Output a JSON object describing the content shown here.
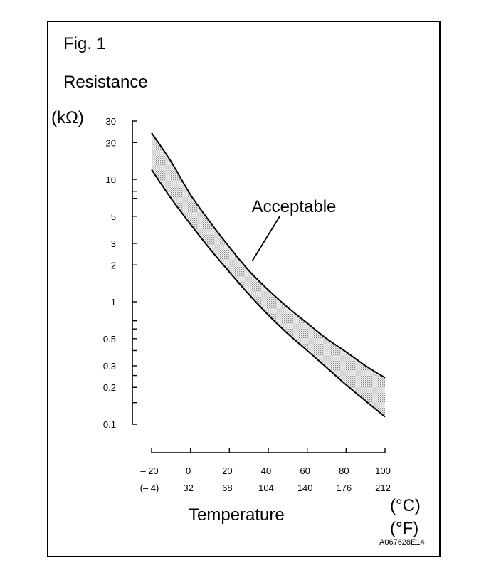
{
  "figure": {
    "label": "Fig. 1",
    "code": "A067628E14"
  },
  "colors": {
    "ink": "#000000",
    "band": "#c9c9c9"
  },
  "chart_data": {
    "type": "area",
    "title": "",
    "ylabel": "Resistance",
    "ylabel_unit": "(kΩ)",
    "xlabel": "Temperature",
    "xlabel_unit_primary": "(°C)",
    "xlabel_unit_secondary": "(°F)",
    "y_scale": "log",
    "ylim": [
      0.1,
      30
    ],
    "xlim": [
      -20,
      100
    ],
    "y_ticks": [
      {
        "value": 0.1,
        "label": "0.1"
      },
      {
        "value": 0.15,
        "label": ""
      },
      {
        "value": 0.2,
        "label": "0.2"
      },
      {
        "value": 0.25,
        "label": ""
      },
      {
        "value": 0.3,
        "label": "0.3"
      },
      {
        "value": 0.4,
        "label": ""
      },
      {
        "value": 0.5,
        "label": "0.5"
      },
      {
        "value": 0.6,
        "label": ""
      },
      {
        "value": 0.7,
        "label": ""
      },
      {
        "value": 1,
        "label": "1"
      },
      {
        "value": 2,
        "label": "2"
      },
      {
        "value": 3,
        "label": "3"
      },
      {
        "value": 5,
        "label": "5"
      },
      {
        "value": 7,
        "label": ""
      },
      {
        "value": 8,
        "label": ""
      },
      {
        "value": 10,
        "label": "10"
      },
      {
        "value": 20,
        "label": "20"
      },
      {
        "value": 30,
        "label": "30"
      }
    ],
    "x_ticks": [
      {
        "value": -20,
        "label_c": "– 20",
        "label_f": "(– 4)"
      },
      {
        "value": 0,
        "label_c": "0",
        "label_f": "32"
      },
      {
        "value": 20,
        "label_c": "20",
        "label_f": "68"
      },
      {
        "value": 40,
        "label_c": "40",
        "label_f": "104"
      },
      {
        "value": 60,
        "label_c": "60",
        "label_f": "140"
      },
      {
        "value": 80,
        "label_c": "80",
        "label_f": "176"
      },
      {
        "value": 100,
        "label_c": "100",
        "label_f": "212"
      }
    ],
    "series": [
      {
        "role": "upper-limit",
        "x": [
          -20,
          -10,
          0,
          10,
          20,
          30,
          40,
          50,
          60,
          70,
          80,
          90,
          100
        ],
        "y": [
          24,
          14,
          7.5,
          4.5,
          2.8,
          1.8,
          1.25,
          0.9,
          0.67,
          0.5,
          0.39,
          0.3,
          0.24
        ]
      },
      {
        "role": "lower-limit",
        "x": [
          -20,
          -10,
          0,
          10,
          20,
          30,
          40,
          50,
          60,
          70,
          80,
          90,
          100
        ],
        "y": [
          12,
          7,
          4.3,
          2.7,
          1.75,
          1.15,
          0.78,
          0.55,
          0.4,
          0.29,
          0.21,
          0.155,
          0.115
        ]
      }
    ],
    "annotations": [
      {
        "text": "Acceptable",
        "points_to": {
          "x": 30,
          "y": 2.0
        }
      }
    ]
  }
}
